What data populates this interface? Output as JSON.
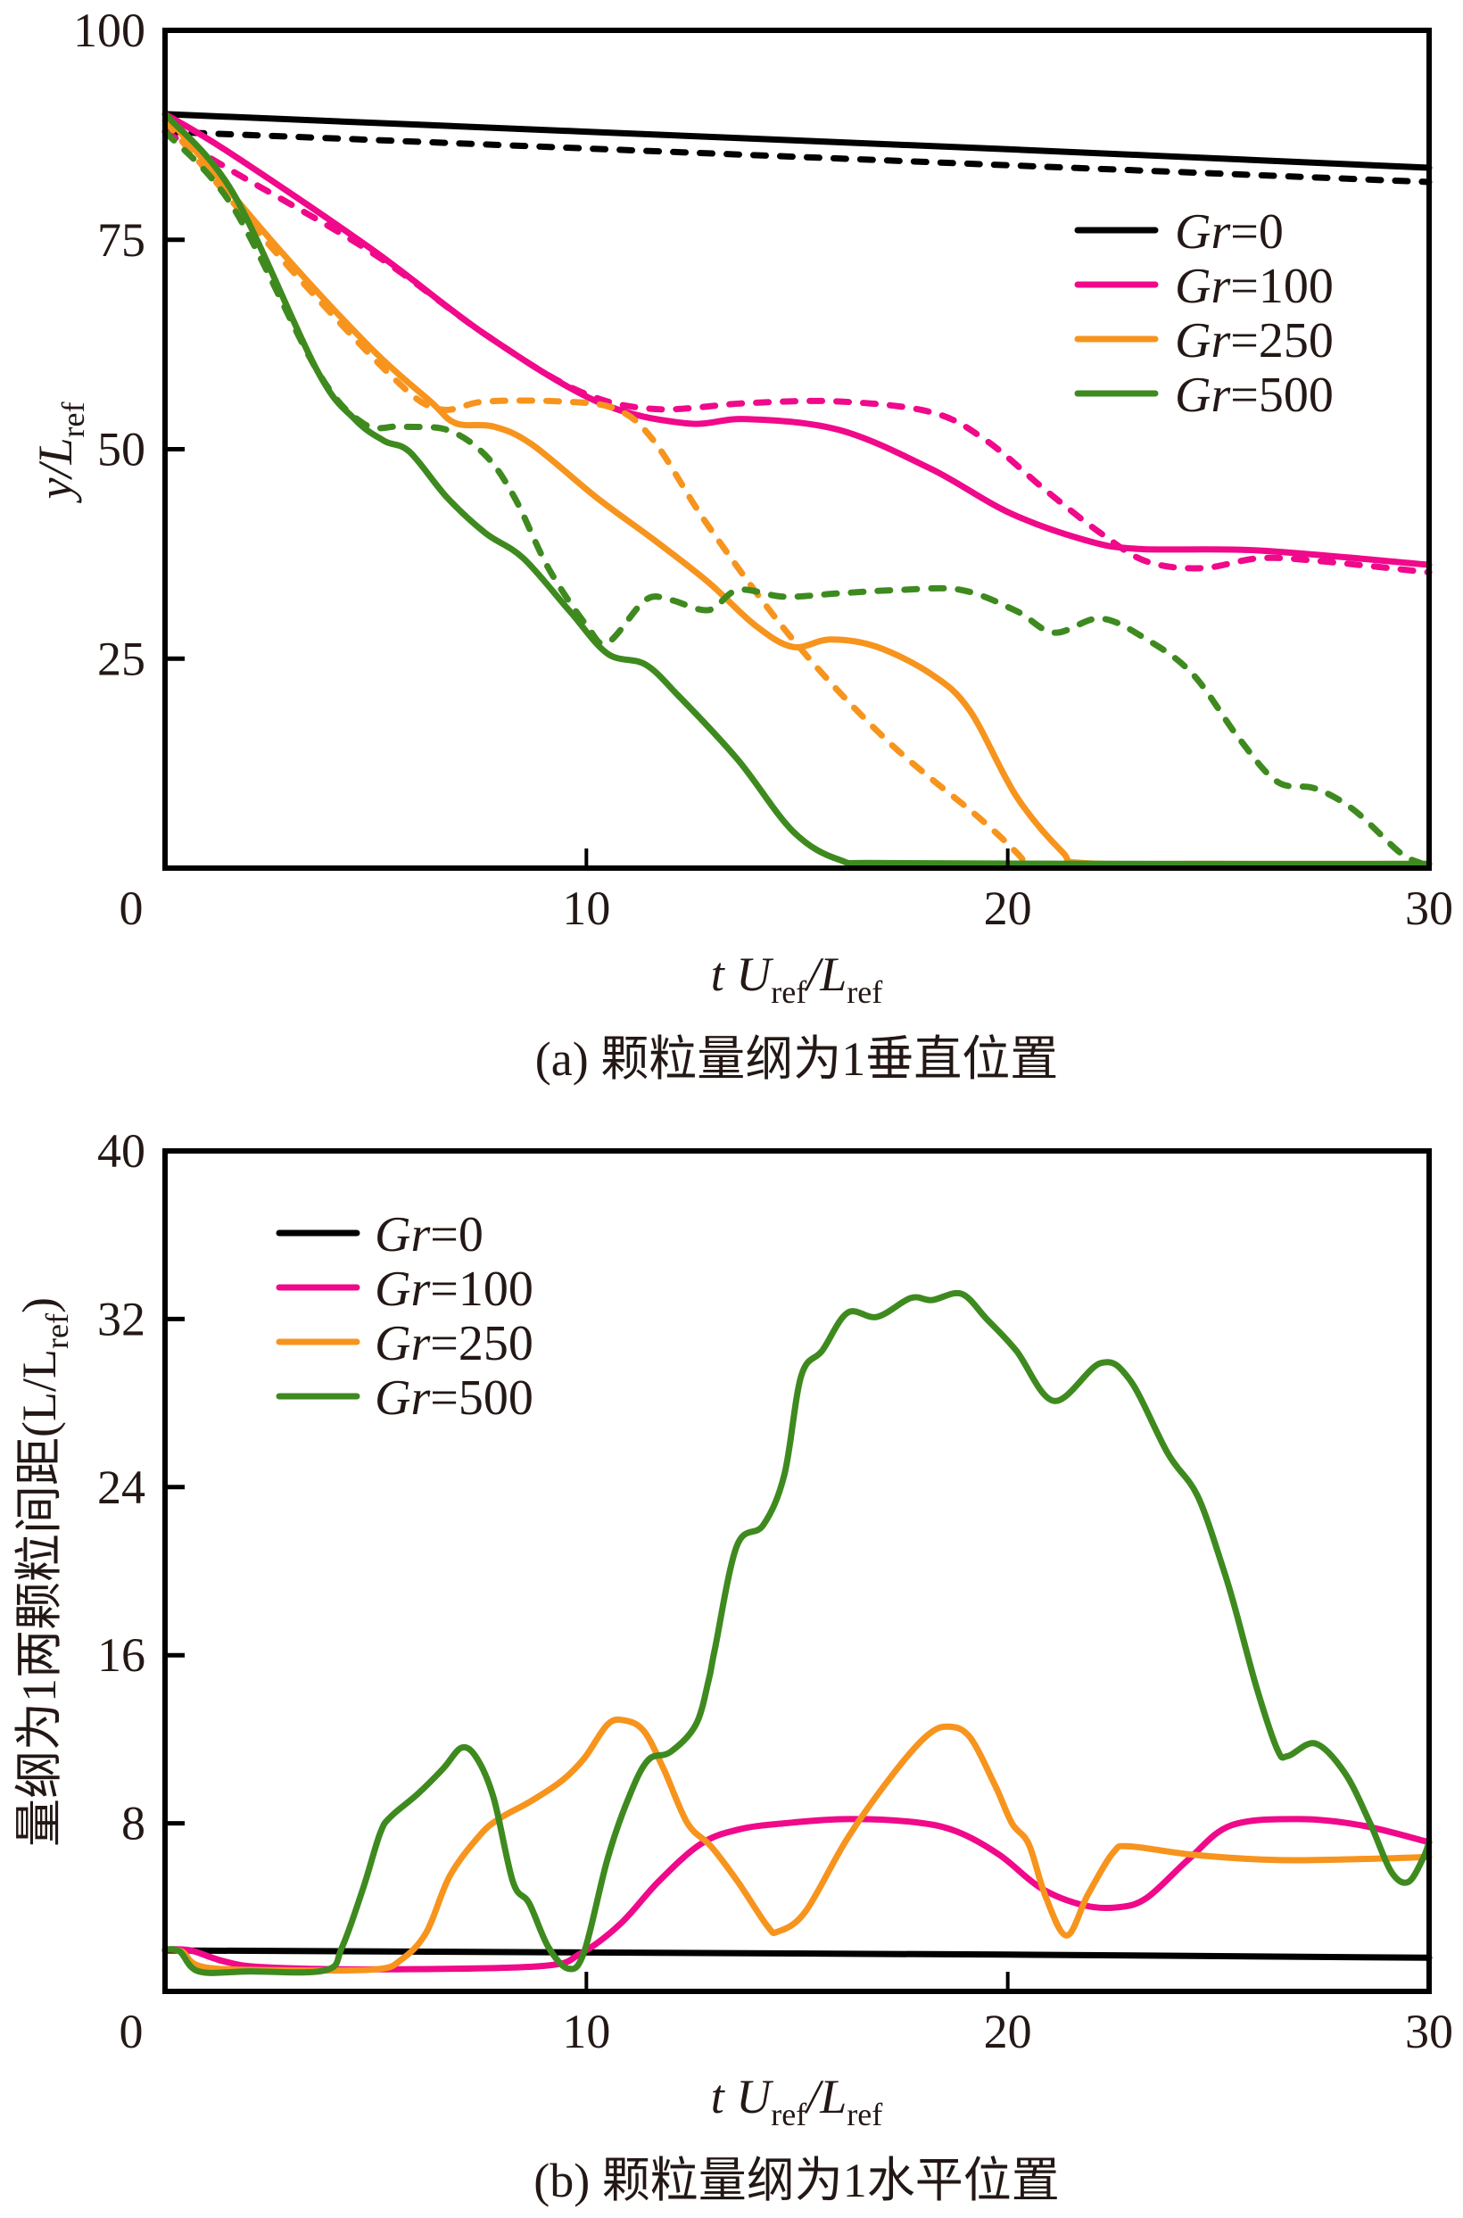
{
  "colors": {
    "gr0": "#000000",
    "gr100": "#f0098a",
    "gr250": "#f7941d",
    "gr500": "#3e8a1f",
    "axis": "#000000",
    "text": "#231815"
  },
  "chart_data": [
    {
      "id": "a",
      "type": "line",
      "caption": "(a) 颗粒量纲为1垂直位置",
      "title": "",
      "xlabel": {
        "main": "t U",
        "sub1": "ref",
        "mid": "/L",
        "sub2": "ref"
      },
      "ylabel": {
        "main": "y/L",
        "sub": "ref"
      },
      "xlim": [
        0,
        30
      ],
      "ylim": [
        0,
        100
      ],
      "xticks": [
        0,
        10,
        20,
        30
      ],
      "xtick_labels": [
        "0",
        "10",
        "20",
        "30"
      ],
      "yticks": [
        25,
        50,
        75,
        100
      ],
      "ytick_labels": [
        "25",
        "50",
        "75",
        "100"
      ],
      "grid": false,
      "legend": {
        "placement": "upper-right",
        "entries": [
          {
            "prefix": "Gr",
            "label": "=0",
            "color_key": "gr0"
          },
          {
            "prefix": "Gr",
            "label": "=100",
            "color_key": "gr100"
          },
          {
            "prefix": "Gr",
            "label": "=250",
            "color_key": "gr250"
          },
          {
            "prefix": "Gr",
            "label": "=500",
            "color_key": "gr500"
          }
        ]
      },
      "series": [
        {
          "name": "Gr=0 (solid)",
          "color_key": "gr0",
          "style": "solid",
          "x": [
            0,
            10,
            20,
            30
          ],
          "y": [
            90,
            87.9,
            85.8,
            83.6
          ]
        },
        {
          "name": "Gr=0 (dashed)",
          "color_key": "gr0",
          "style": "dashed",
          "x": [
            0,
            10,
            20,
            30
          ],
          "y": [
            87.9,
            85.9,
            83.9,
            81.9
          ]
        },
        {
          "name": "Gr=100 (solid)",
          "color_key": "gr100",
          "style": "solid",
          "x": [
            0,
            1.5,
            4.9,
            7.6,
            10.25,
            12.35,
            13.8,
            16,
            18.2,
            20,
            21.8,
            23.1,
            26,
            30
          ],
          "y": [
            90,
            85.5,
            73.9,
            63.7,
            55.7,
            53.1,
            53.6,
            52.3,
            47.6,
            42.5,
            39.2,
            38.1,
            37.9,
            36.2
          ]
        },
        {
          "name": "Gr=100 (dashed)",
          "color_key": "gr100",
          "style": "dashed",
          "x": [
            0,
            1.6,
            4.9,
            7.6,
            9.8,
            11.6,
            13.8,
            16,
            18.2,
            19.5,
            20.9,
            22.2,
            23.3,
            24.6,
            26,
            27.5,
            30
          ],
          "y": [
            87.9,
            83.2,
            73.5,
            63.7,
            57,
            54.8,
            55.5,
            55.7,
            54.4,
            51,
            45.1,
            40,
            36.6,
            35.8,
            37,
            36.6,
            35.3
          ]
        },
        {
          "name": "Gr=250 (solid)",
          "color_key": "gr250",
          "style": "solid",
          "x": [
            0,
            2.7,
            4.9,
            6.3,
            6.9,
            7.8,
            8.7,
            10.25,
            11.6,
            12.9,
            14,
            14.9,
            15.8,
            16.9,
            18.2,
            19.1,
            20.2,
            21.3,
            21.8,
            25,
            30
          ],
          "y": [
            90,
            73.9,
            62,
            55.7,
            53.1,
            52.7,
            50.6,
            44.2,
            39.2,
            34.1,
            29,
            26.4,
            27.3,
            26.4,
            23.1,
            18.8,
            8.6,
            1.9,
            0.6,
            0.5,
            0.5
          ]
        },
        {
          "name": "Gr=250 (dashed)",
          "color_key": "gr250",
          "style": "dashed",
          "x": [
            0,
            2.7,
            5.4,
            6.5,
            7.6,
            9.4,
            10.7,
            11.6,
            12.9,
            14.9,
            17.1,
            19.3,
            20.2,
            20.4
          ],
          "y": [
            89.2,
            73.1,
            58.6,
            54.8,
            55.7,
            55.7,
            54.8,
            51,
            40.8,
            27.3,
            15.4,
            6.1,
            1.9,
            0.6
          ]
        },
        {
          "name": "Gr=500 (solid)",
          "color_key": "gr500",
          "style": "solid",
          "x": [
            0,
            1.6,
            3.6,
            4.5,
            5.2,
            5.8,
            6.7,
            7.6,
            8.5,
            9.6,
            10.5,
            11.4,
            12.2,
            13.6,
            14.9,
            16,
            17.1,
            23,
            30
          ],
          "y": [
            90,
            80.7,
            59.5,
            53.6,
            51,
            49.7,
            44.2,
            40,
            37,
            30.7,
            25.6,
            24.3,
            20.5,
            12.9,
            4.4,
            1,
            0.6,
            0.5,
            0.5
          ]
        },
        {
          "name": "Gr=500 (dashed)",
          "color_key": "gr500",
          "style": "dashed",
          "x": [
            0,
            1.6,
            3.6,
            4.7,
            5.6,
            6.7,
            7.6,
            8.3,
            9.1,
            10,
            10.5,
            11.4,
            12,
            12.9,
            13.6,
            14.7,
            16,
            17.4,
            18.9,
            20.2,
            21.1,
            22.2,
            23.3,
            24.4,
            25.5,
            26.4,
            27.3,
            28.2,
            29.3,
            29.8
          ],
          "y": [
            87.9,
            79,
            59.5,
            53.1,
            52.7,
            52.3,
            49.3,
            44.2,
            35.8,
            29,
            26.9,
            32,
            32,
            30.8,
            33.2,
            32.4,
            32.8,
            33.2,
            33.2,
            30.7,
            28.1,
            29.8,
            27.3,
            23.1,
            15.4,
            10.3,
            9.5,
            7,
            1.9,
            0.6
          ]
        }
      ]
    },
    {
      "id": "b",
      "type": "line",
      "caption": "(b) 颗粒量纲为1水平位置",
      "title": "",
      "xlabel": {
        "main": "t U",
        "sub1": "ref",
        "mid": "/L",
        "sub2": "ref"
      },
      "ylabel": {
        "main": "量纲为1两颗粒间距(L/L",
        "sub": "ref",
        "tail": ")"
      },
      "xlim": [
        0,
        30
      ],
      "ylim": [
        0,
        40
      ],
      "xticks": [
        0,
        10,
        20,
        30
      ],
      "xtick_labels": [
        "0",
        "10",
        "20",
        "30"
      ],
      "yticks": [
        8,
        16,
        24,
        32,
        40
      ],
      "ytick_labels": [
        "8",
        "16",
        "24",
        "32",
        "40"
      ],
      "grid": false,
      "legend": {
        "placement": "upper-left",
        "entries": [
          {
            "prefix": "Gr",
            "label": "=0",
            "color_key": "gr0"
          },
          {
            "prefix": "Gr",
            "label": "=100",
            "color_key": "gr100"
          },
          {
            "prefix": "Gr",
            "label": "=250",
            "color_key": "gr250"
          },
          {
            "prefix": "Gr",
            "label": "=500",
            "color_key": "gr500"
          }
        ]
      },
      "series": [
        {
          "name": "Gr=0",
          "color_key": "gr0",
          "style": "solid",
          "x": [
            0,
            10,
            20,
            30
          ],
          "y": [
            1.95,
            1.85,
            1.75,
            1.6
          ]
        },
        {
          "name": "Gr=100",
          "color_key": "gr100",
          "style": "solid",
          "x": [
            0,
            0.6,
            1.4,
            2.35,
            5,
            8.9,
            9.86,
            10.8,
            11.7,
            12.7,
            13.6,
            14.7,
            16.2,
            17.8,
            18.8,
            19.8,
            20.8,
            21.8,
            22.6,
            23.3,
            24.3,
            25.3,
            26.9,
            28.4,
            30
          ],
          "y": [
            2,
            1.95,
            1.43,
            1.15,
            1.05,
            1.2,
            1.8,
            3.2,
            5.2,
            7.0,
            7.7,
            8.0,
            8.2,
            8.05,
            7.6,
            6.5,
            4.9,
            4.1,
            4.0,
            4.45,
            6.3,
            7.9,
            8.2,
            7.9,
            7.1
          ]
        },
        {
          "name": "Gr=250",
          "color_key": "gr250",
          "style": "solid",
          "x": [
            0,
            0.4,
            0.94,
            3,
            5.0,
            5.6,
            6.2,
            6.76,
            7.5,
            8.0,
            8.64,
            9.4,
            9.95,
            10.5,
            10.9,
            11.36,
            11.83,
            12.4,
            12.96,
            13.6,
            14.3,
            14.55,
            15.2,
            16.2,
            17.3,
            18.1,
            18.6,
            19.1,
            19.7,
            20.1,
            20.5,
            20.9,
            21.4,
            21.9,
            22.5,
            22.9,
            24.4,
            26.4,
            28.4,
            30
          ],
          "y": [
            2,
            1.9,
            1.15,
            1.0,
            1.05,
            1.5,
            2.8,
            5.5,
            7.5,
            8.3,
            9.0,
            10.0,
            11.1,
            12.7,
            12.9,
            12.4,
            10.6,
            8.0,
            6.9,
            5.2,
            3.1,
            2.85,
            3.8,
            7.3,
            10.4,
            12.2,
            12.6,
            12.1,
            9.8,
            8.0,
            7.0,
            4.5,
            2.66,
            4.6,
            6.6,
            6.9,
            6.5,
            6.25,
            6.3,
            6.4
          ]
        },
        {
          "name": "Gr=500",
          "color_key": "gr500",
          "style": "solid",
          "x": [
            0,
            0.35,
            0.8,
            2,
            3.8,
            4.2,
            4.7,
            5.1,
            5.35,
            6.0,
            6.6,
            7.04,
            7.4,
            7.8,
            8.26,
            8.64,
            9.1,
            9.58,
            9.95,
            10.5,
            11.0,
            11.46,
            12.0,
            12.6,
            12.9,
            13.05,
            13.57,
            14.2,
            14.7,
            15.1,
            15.6,
            16.2,
            16.9,
            17.7,
            18.2,
            18.9,
            19.5,
            20.2,
            21.1,
            22.2,
            22.9,
            23.8,
            24.5,
            25.1,
            25.4,
            25.9,
            26.4,
            26.65,
            27.3,
            28.0,
            28.6,
            29.1,
            29.5,
            29.85,
            30
          ],
          "y": [
            2,
            1.9,
            0.95,
            0.95,
            1.0,
            2.1,
            4.9,
            7.5,
            8.3,
            9.4,
            10.6,
            11.6,
            11.1,
            9.2,
            5.2,
            4.2,
            2.1,
            1.08,
            1.9,
            6.3,
            9.2,
            11.0,
            11.4,
            12.7,
            14.8,
            16.3,
            21.2,
            22.2,
            24.6,
            29.3,
            30.5,
            32.3,
            32.1,
            33.0,
            32.9,
            33.2,
            32.0,
            30.5,
            28.1,
            29.9,
            29.1,
            25.6,
            23.6,
            20.2,
            18.2,
            14.5,
            11.5,
            11.2,
            11.8,
            10.4,
            8.0,
            5.7,
            5.2,
            6.3,
            7.1
          ]
        }
      ]
    }
  ]
}
